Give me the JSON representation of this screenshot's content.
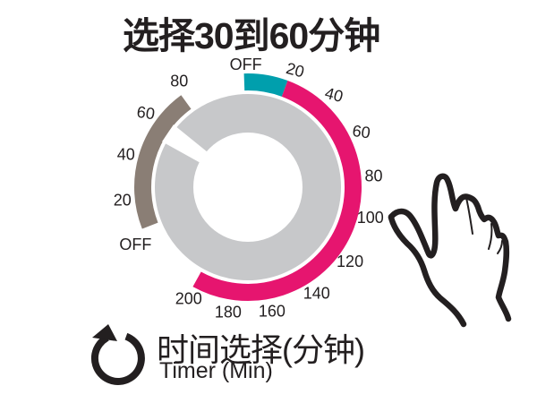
{
  "title": "选择30到60分钟",
  "caption": {
    "zh": "时间选择(分钟)",
    "en": "Timer (Min)"
  },
  "colors": {
    "pink": "#e6156f",
    "teal": "#009fad",
    "brown": "#8a7e75",
    "knob_gray": "#c7c8ca",
    "ink": "#231f20"
  },
  "icons": {
    "rotate": "rotate-clockwise-icon",
    "hand": "hand-turning-knob-illustration"
  },
  "dial": {
    "knob_pointer_angle": -56,
    "outer_scale": {
      "labels": [
        {
          "text": "OFF",
          "angle": -1,
          "r": 137
        },
        {
          "text": "20",
          "angle": 22,
          "rot": 15
        },
        {
          "text": "40",
          "angle": 43,
          "rot": 15
        },
        {
          "text": "60",
          "angle": 64,
          "rot": 8
        },
        {
          "text": "80",
          "angle": 85
        },
        {
          "text": "100",
          "angle": 104
        },
        {
          "text": "120",
          "angle": 126
        },
        {
          "text": "140",
          "angle": 147
        },
        {
          "text": "160",
          "angle": 169
        },
        {
          "text": "180",
          "angle": 189
        },
        {
          "text": "200",
          "angle": 208
        }
      ],
      "arcs": [
        {
          "name": "teal-arc",
          "from": -2,
          "to": 20.5,
          "color": "teal"
        },
        {
          "name": "pink-arc",
          "from": 20.5,
          "to": 209,
          "color": "pink"
        }
      ]
    },
    "inner_scale": {
      "labels": [
        {
          "text": "80",
          "angle": -33
        },
        {
          "text": "60",
          "angle": -54,
          "rot": 8
        },
        {
          "text": "40",
          "angle": -75
        },
        {
          "text": "20",
          "angle": -96
        },
        {
          "text": "OFF",
          "angle": -117
        }
      ],
      "arcs": [
        {
          "name": "brown-arc",
          "from": -111.5,
          "to": -36,
          "color": "brown"
        }
      ]
    }
  }
}
